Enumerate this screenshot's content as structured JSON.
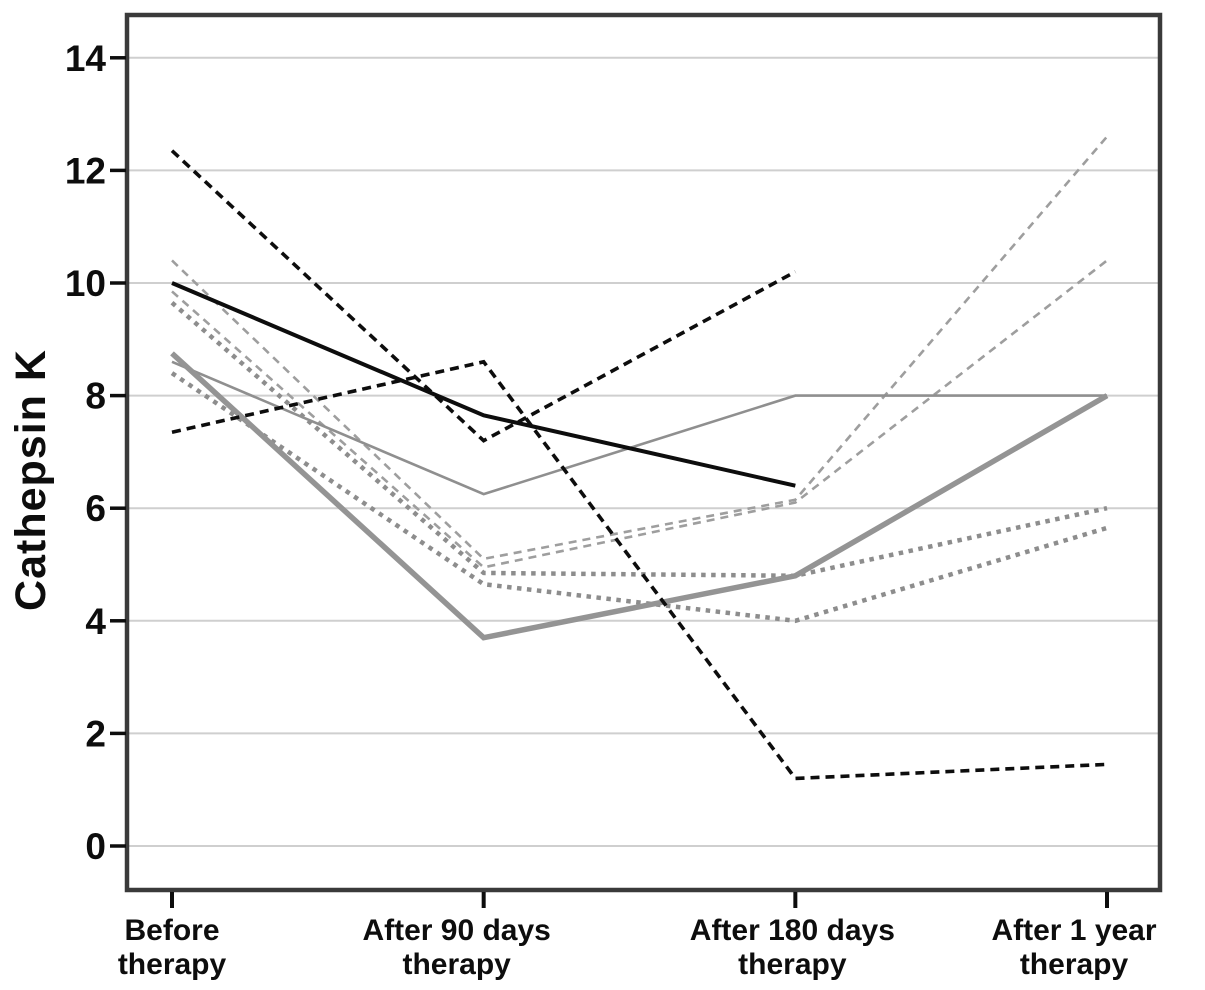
{
  "figure": {
    "background": "#ffffff"
  },
  "chart_data": {
    "type": "line",
    "title": "",
    "xlabel": "",
    "ylabel": "Cathepsin K",
    "x_categories": [
      [
        "Before",
        "therapy"
      ],
      [
        "After 90 days",
        "therapy"
      ],
      [
        "After 180 days",
        "therapy"
      ],
      [
        "After 1 year",
        "therapy"
      ]
    ],
    "y_ticks": [
      0,
      2,
      4,
      6,
      8,
      10,
      12,
      14
    ],
    "y_range_shown": [
      -0.8,
      14.8
    ],
    "grid": "horizontal",
    "legend": "none",
    "colors": {
      "black_line": "#0d0d0d",
      "gray_solid_thick": "#949494",
      "gray_solid_thin": "#8f8f8f",
      "gray_dashed": "#9e9e9e",
      "gray_dotted": "#8d8d8d",
      "gridline": "#cfcfcf",
      "plot_border": "#3a3a3a",
      "text": "#0d0d0d"
    },
    "series": [
      {
        "name": "patient-dotted-gray-1",
        "style": "dotted",
        "color": "#8d8d8d",
        "width": 4.5,
        "values": [
          9.65,
          4.85,
          4.8,
          6.0
        ]
      },
      {
        "name": "patient-dotted-gray-2",
        "style": "dotted",
        "color": "#8d8d8d",
        "width": 4.5,
        "values": [
          8.4,
          4.65,
          4.0,
          5.65
        ]
      },
      {
        "name": "patient-dashed-gray-1",
        "style": "dashed",
        "color": "#9e9e9e",
        "width": 2.6,
        "values": [
          10.4,
          5.1,
          6.15,
          12.6
        ]
      },
      {
        "name": "patient-dashed-gray-2",
        "style": "dashed",
        "color": "#9e9e9e",
        "width": 2.6,
        "values": [
          9.85,
          4.95,
          6.1,
          10.4
        ]
      },
      {
        "name": "patient-solid-gray-thin",
        "style": "solid",
        "color": "#8f8f8f",
        "width": 2.6,
        "values": [
          8.6,
          6.25,
          8.0,
          8.0
        ]
      },
      {
        "name": "patient-solid-gray-thick",
        "style": "solid",
        "color": "#949494",
        "width": 5.5,
        "values": [
          8.75,
          3.7,
          4.8,
          8.0
        ]
      },
      {
        "name": "patient-solid-black",
        "style": "solid",
        "color": "#0d0d0d",
        "width": 4,
        "values": [
          10.0,
          7.65,
          6.4,
          null
        ]
      },
      {
        "name": "patient-dashed-black-1",
        "style": "dashed",
        "color": "#0d0d0d",
        "width": 3.6,
        "values": [
          12.35,
          7.2,
          10.2,
          null
        ]
      },
      {
        "name": "patient-dashed-black-2",
        "style": "dashed",
        "color": "#0d0d0d",
        "width": 3.6,
        "values": [
          7.35,
          8.6,
          1.2,
          1.45
        ]
      }
    ]
  }
}
